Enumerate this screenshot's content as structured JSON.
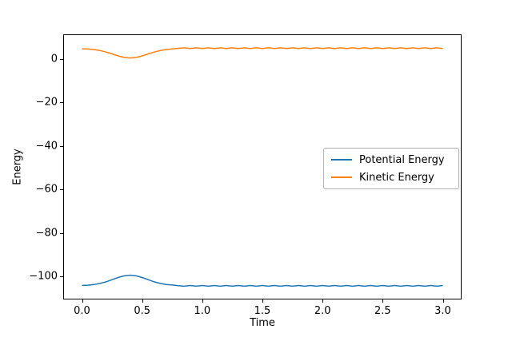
{
  "chart_data": {
    "type": "line",
    "title": "",
    "xlabel": "Time",
    "ylabel": "Energy",
    "xlim": [
      -0.15,
      3.15
    ],
    "ylim": [
      -110.3,
      11
    ],
    "grid": false,
    "legend_position": "center-right",
    "xtick_values": [
      0,
      0.5,
      1,
      1.5,
      2,
      2.5,
      3
    ],
    "xtick_labels": [
      "0.0",
      "0.5",
      "1.0",
      "1.5",
      "2.0",
      "2.5",
      "3.0"
    ],
    "ytick_values": [
      0,
      -20,
      -40,
      -60,
      -80,
      -100
    ],
    "ytick_labels": [
      "0",
      "−20",
      "−40",
      "−60",
      "−80",
      "−100"
    ],
    "x": [
      0,
      0.05,
      0.1,
      0.15,
      0.2,
      0.25,
      0.3,
      0.35,
      0.4,
      0.45,
      0.5,
      0.55,
      0.6,
      0.65,
      0.7,
      0.75,
      0.8,
      0.85,
      0.9,
      0.95,
      1,
      1.05,
      1.1,
      1.15,
      1.2,
      1.25,
      1.3,
      1.35,
      1.4,
      1.45,
      1.5,
      1.55,
      1.6,
      1.65,
      1.7,
      1.75,
      1.8,
      1.85,
      1.9,
      1.95,
      2,
      2.05,
      2.1,
      2.15,
      2.2,
      2.25,
      2.3,
      2.35,
      2.4,
      2.45,
      2.5,
      2.55,
      2.6,
      2.65,
      2.7,
      2.75,
      2.8,
      2.85,
      2.9,
      2.95,
      3
    ],
    "series": [
      {
        "id": "potential",
        "name": "Potential Energy",
        "color": "#1f77b4",
        "values": [
          -104.21,
          -104.08,
          -103.79,
          -103.29,
          -102.53,
          -101.57,
          -100.56,
          -99.79,
          -99.5,
          -99.79,
          -100.56,
          -101.57,
          -102.53,
          -103.29,
          -103.79,
          -104.0,
          -104.35,
          -104.55,
          -104.25,
          -104.55,
          -104.25,
          -104.55,
          -104.25,
          -104.55,
          -104.25,
          -104.55,
          -104.25,
          -104.55,
          -104.25,
          -104.55,
          -104.25,
          -104.55,
          -104.25,
          -104.55,
          -104.25,
          -104.55,
          -104.25,
          -104.55,
          -104.25,
          -104.55,
          -104.25,
          -104.55,
          -104.25,
          -104.55,
          -104.25,
          -104.55,
          -104.25,
          -104.55,
          -104.25,
          -104.55,
          -104.25,
          -104.55,
          -104.25,
          -104.55,
          -104.25,
          -104.55,
          -104.25,
          -104.55,
          -104.25,
          -104.55,
          -104.25
        ]
      },
      {
        "id": "kinetic",
        "name": "Kinetic Energy",
        "color": "#ff7f0e",
        "values": [
          4.72,
          4.6,
          4.35,
          3.9,
          3.22,
          2.35,
          1.45,
          0.76,
          0.5,
          0.76,
          1.45,
          2.35,
          3.22,
          3.9,
          4.35,
          4.65,
          4.95,
          5.15,
          4.85,
          5.15,
          4.85,
          5.15,
          4.85,
          5.15,
          4.85,
          5.15,
          4.85,
          5.15,
          4.85,
          5.15,
          4.85,
          5.15,
          4.85,
          5.15,
          4.85,
          5.15,
          4.85,
          5.15,
          4.85,
          5.15,
          4.85,
          5.15,
          4.85,
          5.15,
          4.85,
          5.15,
          4.85,
          5.15,
          4.85,
          5.15,
          4.85,
          5.15,
          4.85,
          5.15,
          4.85,
          5.15,
          4.85,
          5.15,
          4.85,
          5.15,
          4.85
        ]
      }
    ]
  }
}
